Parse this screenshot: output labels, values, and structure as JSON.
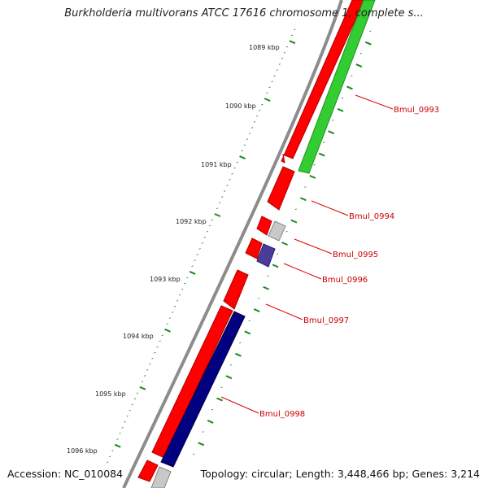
{
  "title": "Burkholderia multivorans ATCC 17616 chromosome 1, complete s...",
  "footer": {
    "accession": "Accession: NC_010084",
    "summary": "Topology: circular; Length: 3,448,466 bp; Genes: 3,214"
  },
  "scale_labels": [
    "1089 kbp",
    "1090 kbp",
    "1091 kbp",
    "1092 kbp",
    "1093 kbp",
    "1094 kbp",
    "1095 kbp",
    "1096 kbp"
  ],
  "gene_labels": [
    "Bmul_0993",
    "Bmul_0994",
    "Bmul_0995",
    "Bmul_0996",
    "Bmul_0997",
    "Bmul_0998"
  ],
  "colors": {
    "background": "#ffffff",
    "backbone": "#8c8c8c",
    "forward_cds": "#ff0000",
    "reverse_green": "#33cc33",
    "reverse_grey": "#c8c8c8",
    "reverse_purple": "#4a3c9a",
    "reverse_navy": "#000080",
    "tick_marks": "#1a8a1a",
    "label_line": "#dd0000",
    "label_text": "#cc0000"
  }
}
